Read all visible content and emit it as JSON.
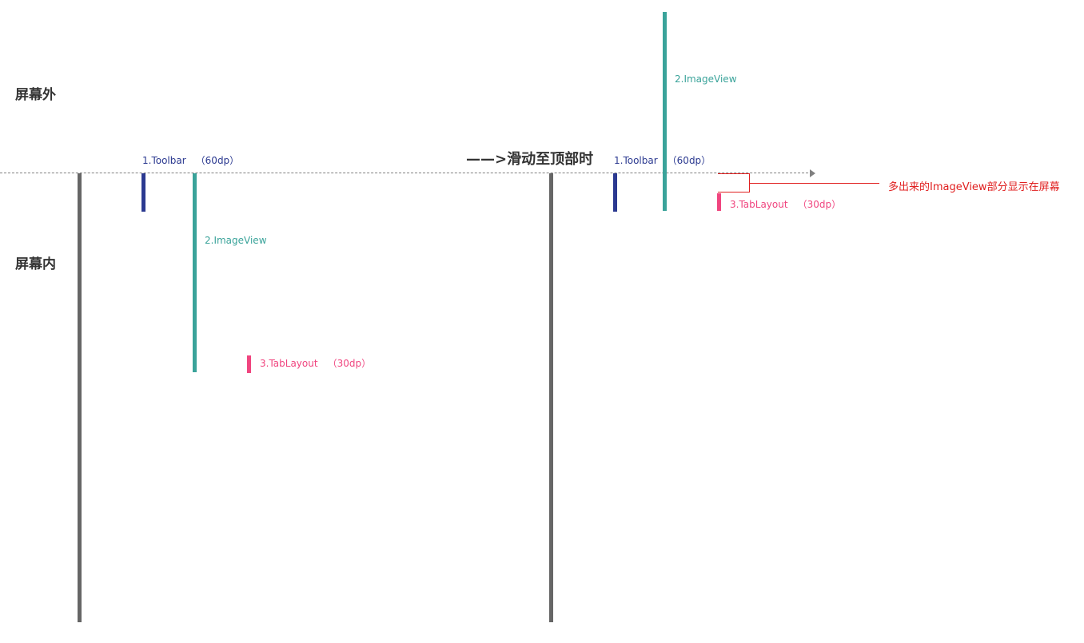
{
  "regions": {
    "outside": "屏幕外",
    "inside": "屏幕内"
  },
  "heading": "——>滑动至顶部时",
  "left_panel": {
    "toolbar": {
      "name": "1.Toolbar",
      "size": "（60dp）"
    },
    "imageview": {
      "name": "2.ImageView"
    },
    "tablayout": {
      "name": "3.TabLayout",
      "size": "（30dp）"
    }
  },
  "right_panel": {
    "toolbar": {
      "name": "1.Toolbar",
      "size": "（60dp）"
    },
    "imageview": {
      "name": "2.ImageView"
    },
    "tablayout": {
      "name": "3.TabLayout",
      "size": "（30dp）"
    }
  },
  "annotation": "多出来的ImageView部分显示在屏幕",
  "colors": {
    "screen": "#666666",
    "toolbar": "#2b3990",
    "imageview": "#3aa39a",
    "tablayout": "#f0457f",
    "annotation": "#e02020",
    "boundary": "#808080",
    "region_text": "#333333"
  }
}
